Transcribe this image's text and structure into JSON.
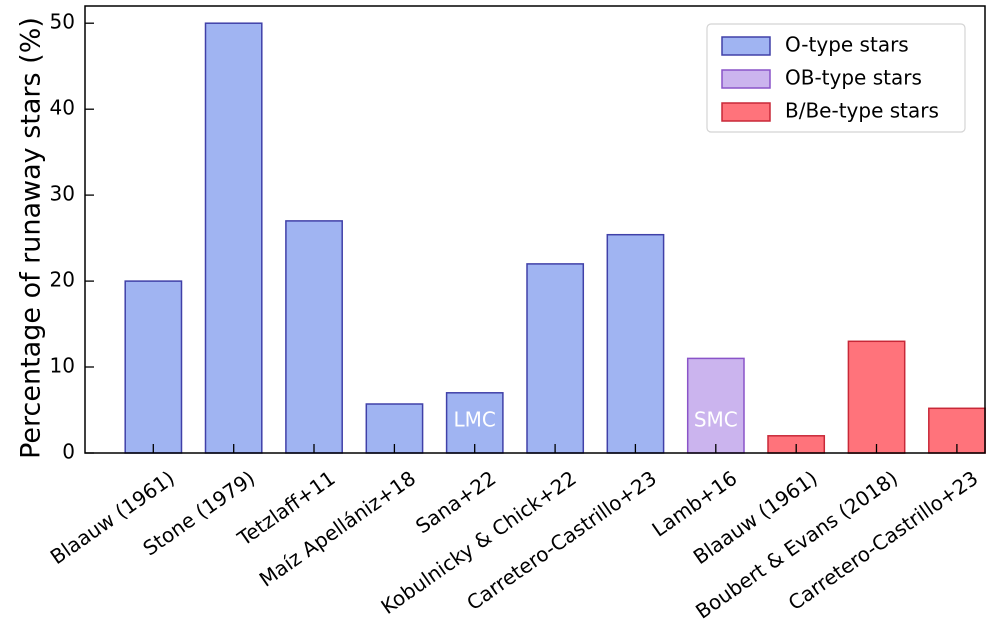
{
  "chart_data": {
    "type": "bar",
    "title": "",
    "xlabel": "",
    "ylabel": "Percentage of runaway stars (%)",
    "ylim": [
      0,
      52
    ],
    "yticks": [
      0,
      10,
      20,
      30,
      40,
      50
    ],
    "grid": false,
    "legend_position": "top-right",
    "categories": [
      "Blaauw (1961)",
      "Stone (1979)",
      "Tetzlaff+11",
      "Maíz Apellániz+18",
      "Sana+22",
      "Kobulnicky & Chick+22",
      "Carretero-Castrillo+23",
      "Lamb+16",
      "Blaauw (1961)",
      "Boubert & Evans (2018)",
      "Carretero-Castrillo+23"
    ],
    "values": [
      20,
      50,
      27,
      5.7,
      7,
      22,
      25.4,
      11,
      2,
      13,
      5.2
    ],
    "bar_groups": [
      "o",
      "o",
      "o",
      "o",
      "o",
      "o",
      "o",
      "ob",
      "b",
      "b",
      "b"
    ],
    "bar_annotations": [
      "",
      "",
      "",
      "",
      "LMC",
      "",
      "",
      "SMC",
      "",
      "",
      ""
    ],
    "series": [
      {
        "key": "o",
        "name": "O-type stars",
        "fill": "#a0b4f2",
        "edge": "#4040a8"
      },
      {
        "key": "ob",
        "name": "OB-type stars",
        "fill": "#cbb4ee",
        "edge": "#8a54c8"
      },
      {
        "key": "b",
        "name": "B/Be-type stars",
        "fill": "#ff737b",
        "edge": "#c82838"
      }
    ]
  }
}
